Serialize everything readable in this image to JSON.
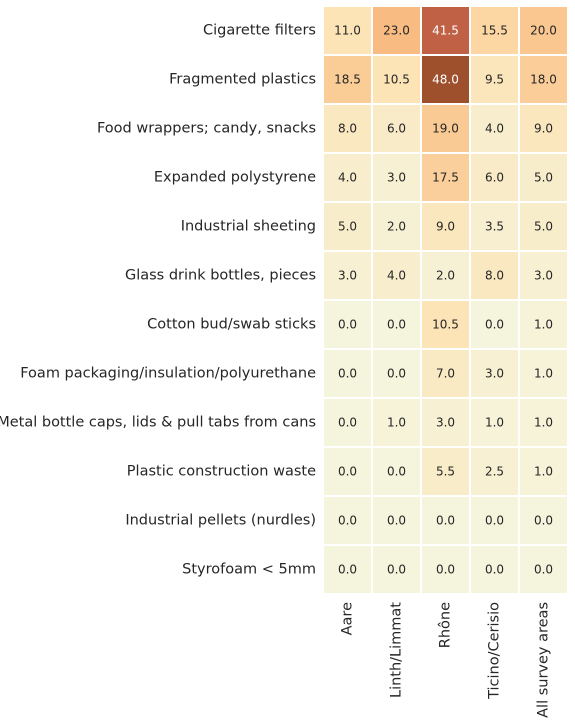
{
  "chart_data": {
    "type": "heatmap",
    "title": "",
    "xlabel": "",
    "ylabel": "",
    "rows": [
      "Cigarette filters",
      "Fragmented plastics",
      "Food wrappers; candy, snacks",
      "Expanded polystyrene",
      "Industrial sheeting",
      "Glass drink bottles, pieces",
      "Cotton bud/swab sticks",
      "Foam packaging/insulation/polyurethane",
      "Metal bottle caps, lids & pull tabs from cans",
      "Plastic construction waste",
      "Industrial pellets (nurdles)",
      "Styrofoam < 5mm"
    ],
    "columns": [
      "Aare",
      "Linth/Limmat",
      "Rhône",
      "Ticino/Cerisio",
      "All survey areas"
    ],
    "values": [
      [
        11.0,
        23.0,
        41.5,
        15.5,
        20.0
      ],
      [
        18.5,
        10.5,
        48.0,
        9.5,
        18.0
      ],
      [
        8.0,
        6.0,
        19.0,
        4.0,
        9.0
      ],
      [
        4.0,
        3.0,
        17.5,
        6.0,
        5.0
      ],
      [
        5.0,
        2.0,
        9.0,
        3.5,
        5.0
      ],
      [
        3.0,
        4.0,
        2.0,
        8.0,
        3.0
      ],
      [
        0.0,
        0.0,
        10.5,
        0.0,
        1.0
      ],
      [
        0.0,
        0.0,
        7.0,
        3.0,
        1.0
      ],
      [
        0.0,
        1.0,
        3.0,
        1.0,
        1.0
      ],
      [
        0.0,
        0.0,
        5.5,
        2.5,
        1.0
      ],
      [
        0.0,
        0.0,
        0.0,
        0.0,
        0.0
      ],
      [
        0.0,
        0.0,
        0.0,
        0.0,
        0.0
      ]
    ],
    "value_labels": [
      [
        "11.0",
        "23.0",
        "41.5",
        "15.5",
        "20.0"
      ],
      [
        "18.5",
        "10.5",
        "48.0",
        "9.5",
        "18.0"
      ],
      [
        "8.0",
        "6.0",
        "19.0",
        "4.0",
        "9.0"
      ],
      [
        "4.0",
        "3.0",
        "17.5",
        "6.0",
        "5.0"
      ],
      [
        "5.0",
        "2.0",
        "9.0",
        "3.5",
        "5.0"
      ],
      [
        "3.0",
        "4.0",
        "2.0",
        "8.0",
        "3.0"
      ],
      [
        "0.0",
        "0.0",
        "10.5",
        "0.0",
        "1.0"
      ],
      [
        "0.0",
        "0.0",
        "7.0",
        "3.0",
        "1.0"
      ],
      [
        "0.0",
        "1.0",
        "3.0",
        "1.0",
        "1.0"
      ],
      [
        "0.0",
        "0.0",
        "5.5",
        "2.5",
        "1.0"
      ],
      [
        "0.0",
        "0.0",
        "0.0",
        "0.0",
        "0.0"
      ],
      [
        "0.0",
        "0.0",
        "0.0",
        "0.0",
        "0.0"
      ]
    ],
    "value_range": [
      0,
      48
    ],
    "colormap": [
      "#f5f4dc",
      "#fde2b2",
      "#f8b97f",
      "#dd6e59",
      "#9e4f2c"
    ],
    "grid": false,
    "legend": "none"
  }
}
